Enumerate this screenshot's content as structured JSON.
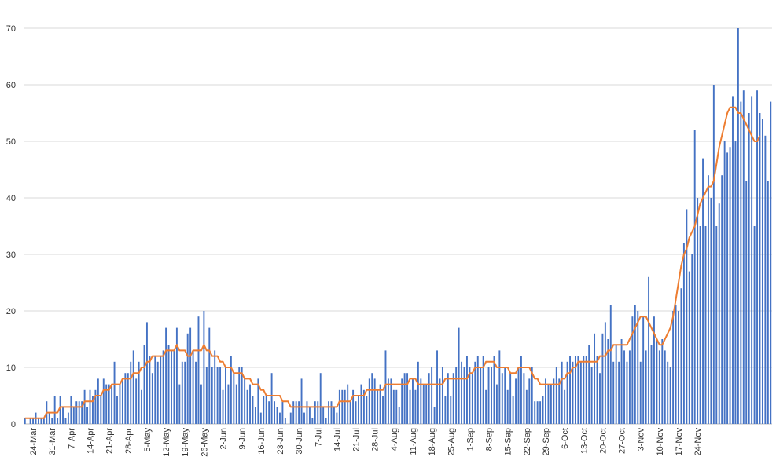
{
  "chart_data": {
    "type": "bar",
    "title": "",
    "xlabel": "",
    "ylabel": "",
    "ylim": [
      0,
      70
    ],
    "yticks": [
      0,
      10,
      20,
      30,
      40,
      50,
      60,
      70
    ],
    "grid": "horizontal",
    "legend": "none",
    "start_date": "2020-03-21",
    "x_tick_labels": [
      "24-Mar",
      "31-Mar",
      "7-Apr",
      "14-Apr",
      "21-Apr",
      "28-Apr",
      "5-May",
      "12-May",
      "19-May",
      "26-May",
      "2-Jun",
      "9-Jun",
      "16-Jun",
      "23-Jun",
      "30-Jun",
      "7-Jul",
      "14-Jul",
      "21-Jul",
      "28-Jul",
      "4-Aug",
      "11-Aug",
      "18-Aug",
      "25-Aug",
      "1-Sep",
      "8-Sep",
      "15-Sep",
      "22-Sep",
      "29-Sep",
      "6-Oct",
      "13-Oct",
      "20-Oct",
      "27-Oct",
      "3-Nov",
      "10-Nov",
      "17-Nov",
      "24-Nov"
    ],
    "series": [
      {
        "name": "",
        "type": "bar",
        "color": "#4472C4",
        "values": [
          1,
          0,
          1,
          1,
          2,
          1,
          1,
          1,
          4,
          2,
          1,
          5,
          1,
          5,
          3,
          1,
          2,
          5,
          3,
          4,
          4,
          4,
          6,
          3,
          6,
          5,
          6,
          8,
          5,
          8,
          7,
          7,
          7,
          11,
          5,
          7,
          8,
          9,
          9,
          11,
          13,
          8,
          11,
          6,
          14,
          18,
          12,
          9,
          12,
          11,
          12,
          13,
          17,
          14,
          13,
          13,
          17,
          7,
          11,
          11,
          16,
          17,
          13,
          11,
          19,
          7,
          20,
          10,
          17,
          10,
          13,
          10,
          10,
          6,
          10,
          7,
          12,
          9,
          7,
          10,
          10,
          8,
          6,
          7,
          5,
          3,
          8,
          2,
          5,
          5,
          4,
          9,
          4,
          3,
          2,
          4,
          1,
          0,
          2,
          4,
          4,
          4,
          8,
          2,
          4,
          3,
          1,
          4,
          4,
          9,
          3,
          1,
          4,
          4,
          3,
          2,
          6,
          6,
          6,
          7,
          4,
          6,
          4,
          5,
          7,
          6,
          5,
          8,
          9,
          8,
          6,
          7,
          5,
          13,
          8,
          8,
          6,
          6,
          3,
          8,
          9,
          9,
          6,
          8,
          6,
          11,
          8,
          7,
          7,
          9,
          10,
          3,
          13,
          8,
          10,
          5,
          9,
          5,
          9,
          10,
          17,
          11,
          10,
          12,
          10,
          9,
          11,
          12,
          10,
          12,
          6,
          10,
          10,
          12,
          7,
          13,
          9,
          10,
          6,
          9,
          5,
          8,
          10,
          12,
          9,
          6,
          8,
          10,
          4,
          4,
          4,
          5,
          8,
          7,
          7,
          8,
          10,
          8,
          11,
          6,
          11,
          12,
          11,
          12,
          12,
          11,
          12,
          12,
          14,
          10,
          16,
          12,
          9,
          16,
          18,
          15,
          21,
          11,
          14,
          11,
          15,
          13,
          11,
          13,
          19,
          21,
          20,
          11,
          19,
          13,
          26,
          14,
          19,
          15,
          13,
          15,
          13,
          11,
          10,
          20,
          21,
          20,
          24,
          32,
          38,
          27,
          30,
          52,
          40,
          35,
          47,
          35,
          44,
          40,
          60,
          35,
          39,
          44,
          50,
          48,
          49,
          58,
          50,
          70,
          57,
          59,
          43,
          55,
          58,
          35,
          59,
          55,
          54,
          51,
          43,
          57
        ]
      },
      {
        "name": "",
        "type": "line",
        "color": "#ED7D31",
        "values": [
          1,
          1,
          1,
          1,
          1,
          1,
          1,
          1,
          2,
          2,
          2,
          2,
          2,
          3,
          3,
          3,
          3,
          3,
          3,
          3,
          3,
          3,
          4,
          4,
          4,
          4,
          5,
          5,
          5,
          6,
          6,
          6,
          7,
          7,
          7,
          7,
          8,
          8,
          8,
          8,
          9,
          9,
          9,
          10,
          10,
          11,
          11,
          12,
          12,
          12,
          12,
          12,
          13,
          13,
          13,
          13,
          14,
          13,
          13,
          13,
          12,
          12,
          13,
          13,
          13,
          13,
          14,
          13,
          13,
          12,
          12,
          12,
          11,
          11,
          10,
          10,
          10,
          9,
          9,
          9,
          9,
          8,
          8,
          8,
          7,
          7,
          7,
          6,
          6,
          5,
          5,
          5,
          5,
          5,
          5,
          4,
          4,
          4,
          3,
          3,
          3,
          3,
          3,
          3,
          3,
          3,
          3,
          3,
          3,
          3,
          3,
          3,
          3,
          3,
          3,
          3,
          4,
          4,
          4,
          4,
          4,
          5,
          5,
          5,
          5,
          5,
          6,
          6,
          6,
          6,
          6,
          6,
          6,
          7,
          7,
          7,
          7,
          7,
          7,
          7,
          7,
          7,
          8,
          8,
          8,
          7,
          7,
          7,
          7,
          7,
          7,
          7,
          7,
          7,
          7,
          8,
          8,
          8,
          8,
          8,
          8,
          8,
          8,
          8,
          9,
          9,
          10,
          10,
          10,
          10,
          11,
          11,
          11,
          11,
          10,
          10,
          10,
          10,
          10,
          9,
          9,
          9,
          10,
          10,
          10,
          10,
          10,
          9,
          8,
          8,
          7,
          7,
          7,
          7,
          7,
          7,
          7,
          7,
          8,
          8,
          9,
          9,
          10,
          10,
          11,
          11,
          11,
          11,
          11,
          11,
          11,
          11,
          12,
          12,
          12,
          13,
          13,
          14,
          14,
          14,
          14,
          14,
          14,
          15,
          16,
          17,
          18,
          19,
          19,
          19,
          18,
          17,
          16,
          15,
          14,
          14,
          15,
          16,
          17,
          19,
          22,
          25,
          28,
          30,
          31,
          33,
          34,
          35,
          37,
          39,
          40,
          41,
          42,
          42,
          43,
          46,
          49,
          51,
          53,
          55,
          56,
          56,
          56,
          55,
          55,
          54,
          53,
          52,
          51,
          50,
          50,
          51
        ]
      }
    ]
  }
}
